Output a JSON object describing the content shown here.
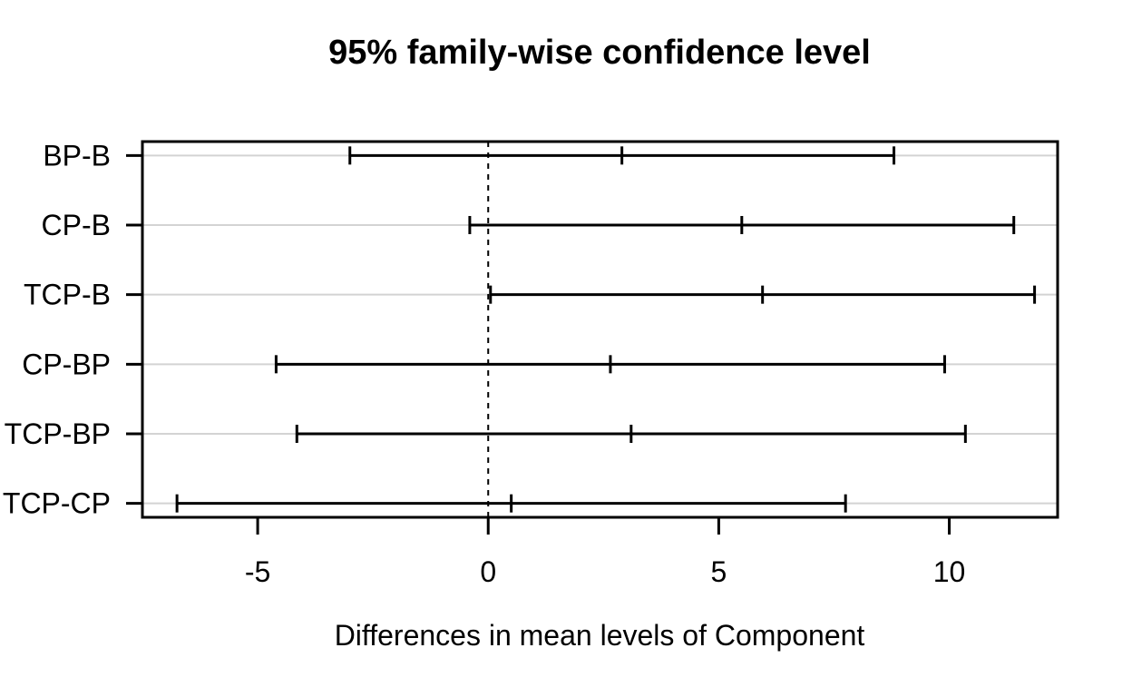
{
  "chart_data": {
    "type": "scatter",
    "style": "tukey-hsd-horizontal-confidence-intervals",
    "title": "95% family-wise confidence level",
    "xlabel": "Differences in mean levels of Component",
    "ylabel": "",
    "categories": [
      "BP-B",
      "CP-B",
      "TCP-B",
      "CP-BP",
      "TCP-BP",
      "TCP-CP"
    ],
    "intervals": [
      {
        "comparison": "BP-B",
        "diff": 2.9,
        "lower": -3.0,
        "upper": 8.8
      },
      {
        "comparison": "CP-B",
        "diff": 5.5,
        "lower": -0.4,
        "upper": 11.4
      },
      {
        "comparison": "TCP-B",
        "diff": 5.95,
        "lower": 0.05,
        "upper": 11.85
      },
      {
        "comparison": "CP-BP",
        "diff": 2.65,
        "lower": -4.6,
        "upper": 9.9
      },
      {
        "comparison": "TCP-BP",
        "diff": 3.1,
        "lower": -4.15,
        "upper": 10.35
      },
      {
        "comparison": "TCP-CP",
        "diff": 0.5,
        "lower": -6.75,
        "upper": 7.75
      }
    ],
    "xlim": [
      -7.5,
      12.35
    ],
    "xticks": [
      "-5",
      "0",
      "5",
      "10"
    ],
    "xtick_values": [
      -5,
      0,
      5,
      10
    ],
    "reference_line_x": 0,
    "grid": "horizontal",
    "legend": "none"
  },
  "colors": {
    "foreground": "#000000",
    "background": "#ffffff",
    "gridline": "#d3d3d3"
  }
}
